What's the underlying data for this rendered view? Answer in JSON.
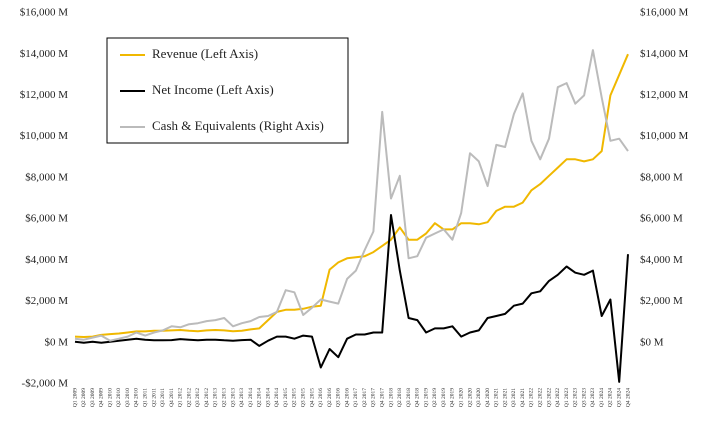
{
  "chart_data": {
    "type": "line",
    "categories": [
      "Q1 2009",
      "Q2 2009",
      "Q3 2009",
      "Q4 2009",
      "Q1 2010",
      "Q2 2010",
      "Q3 2010",
      "Q4 2010",
      "Q1 2011",
      "Q2 2011",
      "Q3 2011",
      "Q4 2011",
      "Q1 2012",
      "Q2 2012",
      "Q3 2012",
      "Q4 2012",
      "Q1 2013",
      "Q2 2013",
      "Q3 2013",
      "Q4 2013",
      "Q1 2014",
      "Q2 2014",
      "Q3 2014",
      "Q4 2014",
      "Q1 2015",
      "Q2 2015",
      "Q3 2015",
      "Q4 2015",
      "Q1 2016",
      "Q2 2016",
      "Q3 2016",
      "Q4 2016",
      "Q1 2017",
      "Q2 2017",
      "Q3 2017",
      "Q4 2017",
      "Q1 2018",
      "Q2 2018",
      "Q3 2018",
      "Q4 2018",
      "Q1 2019",
      "Q2 2019",
      "Q3 2019",
      "Q4 2019",
      "Q1 2020",
      "Q2 2020",
      "Q3 2020",
      "Q4 2020",
      "Q1 2021",
      "Q2 2021",
      "Q3 2021",
      "Q4 2021",
      "Q1 2022",
      "Q2 2022",
      "Q3 2022",
      "Q4 2022",
      "Q1 2023",
      "Q2 2023",
      "Q3 2023",
      "Q4 2023",
      "Q1 2024",
      "Q2 2024",
      "Q3 2024",
      "Q4 2024"
    ],
    "series": [
      {
        "name": "Revenue (Left Axis)",
        "color": "#f0b800",
        "values": [
          300,
          280,
          300,
          380,
          420,
          450,
          500,
          550,
          550,
          580,
          580,
          600,
          620,
          580,
          560,
          600,
          620,
          600,
          560,
          580,
          650,
          700,
          1100,
          1500,
          1600,
          1600,
          1650,
          1750,
          1800,
          3550,
          3900,
          4100,
          4150,
          4200,
          4400,
          4700,
          5000,
          5600,
          5000,
          5000,
          5300,
          5800,
          5500,
          5500,
          5800,
          5800,
          5750,
          5850,
          6400,
          6600,
          6600,
          6800,
          7400,
          7700,
          8100,
          8500,
          8900,
          8900,
          8800,
          8900,
          9300,
          12000,
          13000,
          14000
        ]
      },
      {
        "name": "Net Income (Left Axis)",
        "color": "#000000",
        "values": [
          50,
          0,
          50,
          0,
          50,
          100,
          150,
          200,
          150,
          120,
          120,
          130,
          180,
          150,
          120,
          150,
          150,
          120,
          100,
          130,
          150,
          -150,
          100,
          300,
          300,
          200,
          350,
          300,
          -1200,
          -300,
          -700,
          200,
          400,
          400,
          500,
          500,
          6200,
          3500,
          1200,
          1100,
          500,
          700,
          700,
          800,
          300,
          500,
          600,
          1200,
          1300,
          1400,
          1800,
          1900,
          2400,
          2500,
          3000,
          3300,
          3700,
          3400,
          3300,
          3500,
          1300,
          2100,
          -1900,
          4300
        ]
      },
      {
        "name": "Cash & Equivalents (Right Axis)",
        "color": "#bbbbbb",
        "axis": "y2",
        "values": [
          200,
          150,
          250,
          350,
          100,
          200,
          300,
          500,
          350,
          500,
          600,
          800,
          750,
          900,
          950,
          1050,
          1100,
          1200,
          800,
          950,
          1050,
          1250,
          1300,
          1500,
          2550,
          2450,
          1350,
          1700,
          2100,
          2000,
          1900,
          3100,
          3500,
          4500,
          5400,
          11200,
          7000,
          8100,
          4100,
          4200,
          5100,
          5300,
          5500,
          5000,
          6300,
          9200,
          8800,
          7600,
          9600,
          9500,
          11100,
          12100,
          9800,
          8900,
          9900,
          12400,
          12600,
          11600,
          12000,
          14200,
          11900,
          9800,
          9900,
          9300
        ]
      }
    ],
    "ylim": [
      -2000,
      16000
    ],
    "yticks": [
      {
        "value": -2000,
        "label": "-$2,000 M"
      },
      {
        "value": 0,
        "label": "$0 M"
      },
      {
        "value": 2000,
        "label": "$2,000 M"
      },
      {
        "value": 4000,
        "label": "$4,000 M"
      },
      {
        "value": 6000,
        "label": "$6,000 M"
      },
      {
        "value": 8000,
        "label": "$8,000 M"
      },
      {
        "value": 10000,
        "label": "$10,000 M"
      },
      {
        "value": 12000,
        "label": "$12,000 M"
      },
      {
        "value": 14000,
        "label": "$14,000 M"
      },
      {
        "value": 16000,
        "label": "$16,000 M"
      }
    ],
    "y2lim": [
      -2000,
      16000
    ],
    "y2ticks": [
      {
        "value": 0,
        "label": "$0 M"
      },
      {
        "value": 2000,
        "label": "$2,000 M"
      },
      {
        "value": 4000,
        "label": "$4,000 M"
      },
      {
        "value": 6000,
        "label": "$6,000 M"
      },
      {
        "value": 8000,
        "label": "$8,000 M"
      },
      {
        "value": 10000,
        "label": "$10,000 M"
      },
      {
        "value": 12000,
        "label": "$12,000 M"
      },
      {
        "value": 14000,
        "label": "$14,000 M"
      },
      {
        "value": 16000,
        "label": "$16,000 M"
      }
    ],
    "grid": false,
    "legend": "upper left"
  }
}
